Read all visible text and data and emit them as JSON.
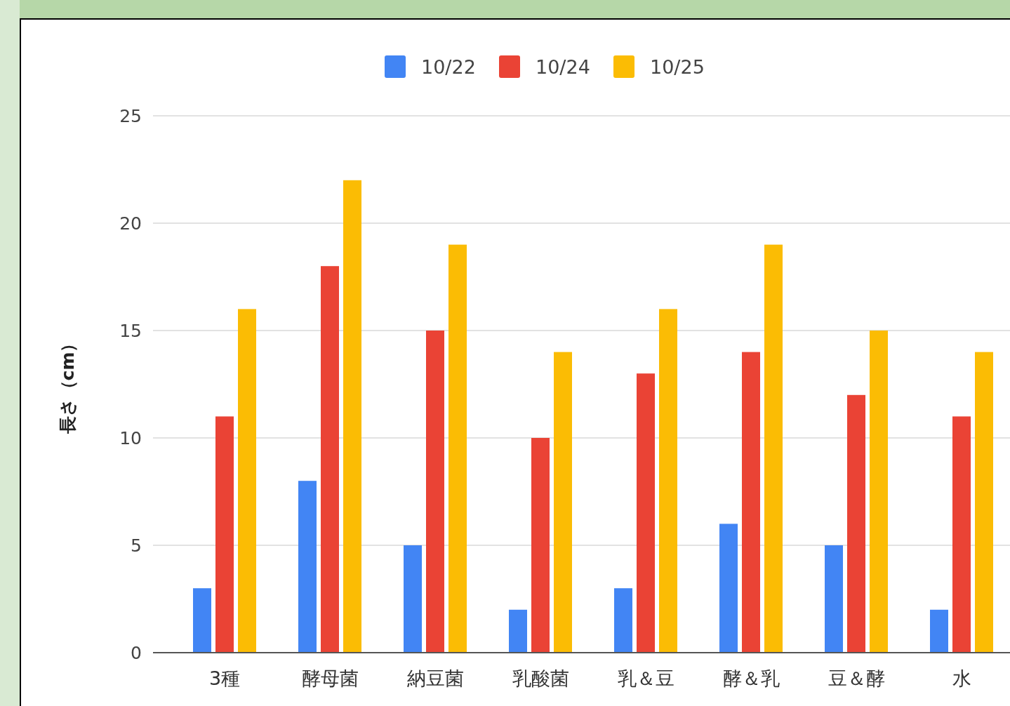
{
  "chart_data": {
    "type": "bar",
    "ylabel": "長さ（cm）",
    "categories": [
      "3種",
      "酵母菌",
      "納豆菌",
      "乳酸菌",
      "乳＆豆",
      "酵＆乳",
      "豆＆酵",
      "水"
    ],
    "series": [
      {
        "name": "10/22",
        "color": "#4285f4",
        "values": [
          3,
          8,
          5,
          2,
          3,
          6,
          5,
          2
        ]
      },
      {
        "name": "10/24",
        "color": "#ea4335",
        "values": [
          11,
          18,
          15,
          10,
          13,
          14,
          12,
          11
        ]
      },
      {
        "name": "10/25",
        "color": "#fbbc04",
        "values": [
          16,
          22,
          19,
          14,
          16,
          19,
          15,
          14
        ]
      }
    ],
    "ylim": [
      0,
      25
    ],
    "yticks": [
      0,
      5,
      10,
      15,
      20,
      25
    ],
    "grid": "y",
    "legend": "top"
  }
}
